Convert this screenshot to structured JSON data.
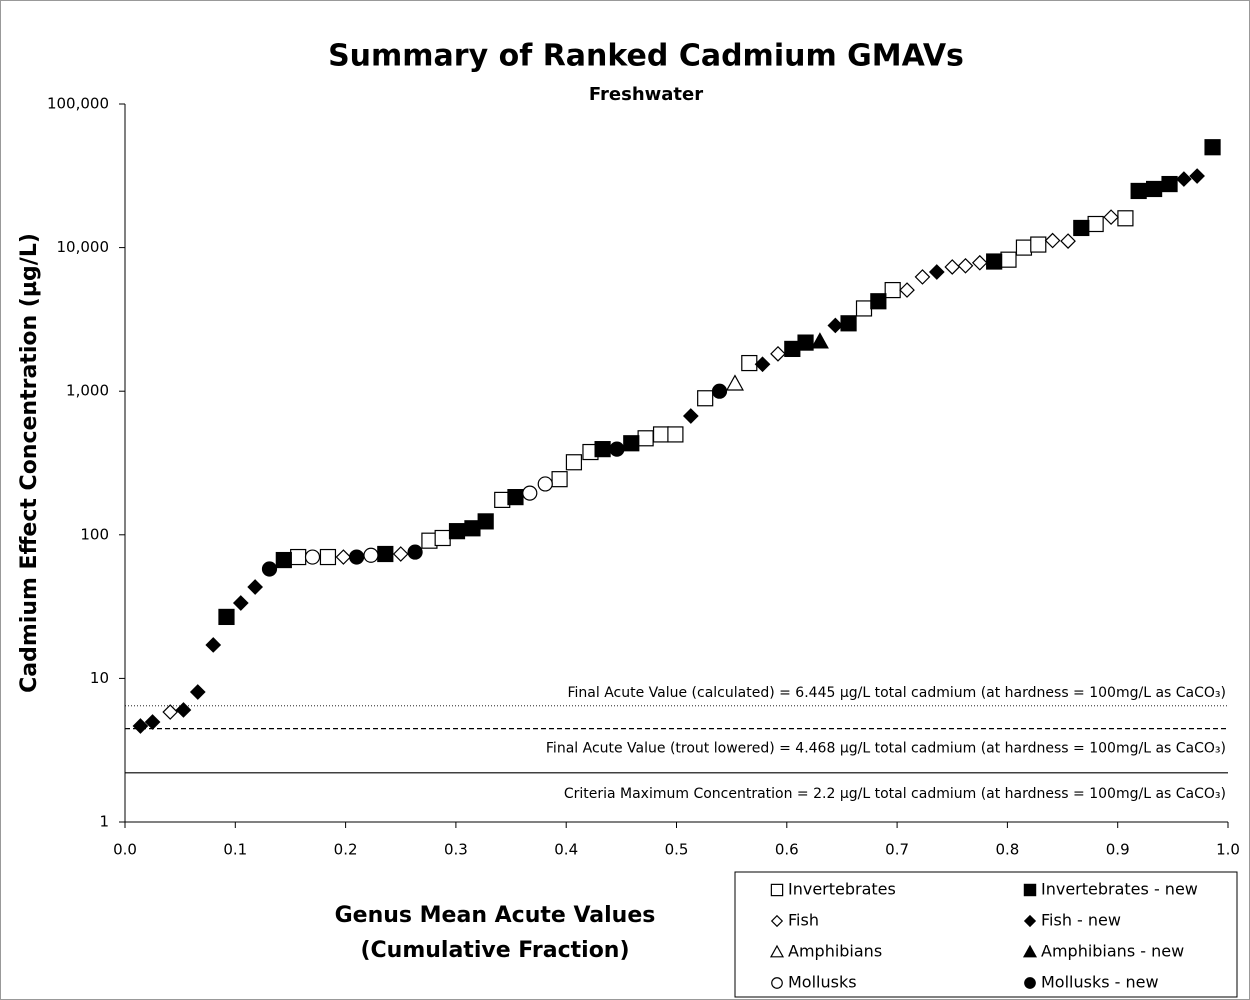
{
  "chart_data": {
    "type": "scatter",
    "title": "Summary of Ranked Cadmium GMAVs",
    "subtitle": "Freshwater",
    "x_label": "Genus Mean Acute Values\n(Cumulative Fraction)",
    "y_label": "Cadmium Effect Concentration  (µg/L)",
    "xlim": [
      0,
      1
    ],
    "xticks": [
      {
        "value": 0,
        "label": "0.0"
      },
      0.1,
      0.2,
      0.3,
      0.4,
      0.5,
      0.6,
      0.7,
      0.8,
      0.9,
      {
        "value": 1,
        "label": "1.0"
      }
    ],
    "ylim": [
      1,
      100000
    ],
    "yscale": "log",
    "yticks": [
      1,
      10,
      100,
      {
        "value": 1000,
        "label": "1,000"
      },
      {
        "value": 10000,
        "label": "10,000"
      },
      {
        "value": 100000,
        "label": "100,000"
      }
    ],
    "grid": false,
    "legend": "bottom-right",
    "series": [
      {
        "name": "Invertebrates",
        "color": "#000000",
        "marker": "square",
        "filled": false,
        "x": [
          0.157,
          0.184,
          0.276,
          0.288,
          0.342,
          0.394,
          0.407,
          0.422,
          0.472,
          0.486,
          0.499,
          0.526,
          0.566,
          0.67,
          0.696,
          0.801,
          0.815,
          0.828,
          0.88,
          0.907
        ],
        "values": [
          70,
          70,
          91,
          95,
          175,
          244,
          320,
          377,
          470,
          500,
          500,
          893,
          1570,
          3770,
          5060,
          8240,
          10000,
          10500,
          14600,
          16000
        ]
      },
      {
        "name": "Invertebrates - new",
        "color": "#000000",
        "marker": "square",
        "filled": true,
        "x": [
          0.092,
          0.144,
          0.236,
          0.301,
          0.315,
          0.327,
          0.354,
          0.433,
          0.459,
          0.605,
          0.617,
          0.656,
          0.683,
          0.788,
          0.867,
          0.919,
          0.933,
          0.947,
          0.986
        ],
        "values": [
          26.8,
          66.7,
          73.5,
          106,
          111,
          124,
          183,
          395,
          434,
          1970,
          2180,
          2970,
          4230,
          8000,
          13700,
          24800,
          25600,
          27700,
          50000
        ]
      },
      {
        "name": "Fish",
        "color": "#000000",
        "marker": "diamond",
        "filled": false,
        "x": [
          0.041,
          0.198,
          0.25,
          0.592,
          0.709,
          0.723,
          0.75,
          0.762,
          0.775,
          0.841,
          0.855,
          0.894
        ],
        "values": [
          5.83,
          70,
          73.5,
          1820,
          5060,
          6250,
          7330,
          7470,
          7840,
          11200,
          11100,
          16300
        ]
      },
      {
        "name": "Fish - new",
        "color": "#000000",
        "marker": "diamond",
        "filled": true,
        "x": [
          0.014,
          0.025,
          0.053,
          0.066,
          0.08,
          0.105,
          0.118,
          0.513,
          0.578,
          0.644,
          0.736,
          0.96,
          0.972
        ],
        "values": [
          4.66,
          4.97,
          6.03,
          8.04,
          17.1,
          33.5,
          43.3,
          672,
          1540,
          2870,
          6760,
          30000,
          31500
        ]
      },
      {
        "name": "Amphibians",
        "color": "#000000",
        "marker": "triangle",
        "filled": false,
        "x": [
          0.553
        ],
        "values": [
          1130
        ]
      },
      {
        "name": "Amphibians - new",
        "color": "#000000",
        "marker": "triangle",
        "filled": true,
        "x": [
          0.63
        ],
        "values": [
          2220
        ]
      },
      {
        "name": "Mollusks",
        "color": "#000000",
        "marker": "circle",
        "filled": false,
        "x": [
          0.17,
          0.223,
          0.367,
          0.381
        ],
        "values": [
          70,
          72,
          195,
          226
        ]
      },
      {
        "name": "Mollusks - new",
        "color": "#000000",
        "marker": "circle",
        "filled": true,
        "x": [
          0.131,
          0.21,
          0.263,
          0.446,
          0.539
        ],
        "values": [
          57.8,
          70,
          75.8,
          395,
          1000
        ]
      }
    ],
    "reference_lines": [
      {
        "label": "Final Acute Value (calculated) = 6.445 µg/L total cadmium (at hardness = 100mg/L as CaCO₃)",
        "value": 6.445,
        "style": "dotted"
      },
      {
        "label": "Final Acute Value (trout lowered)  = 4.468 µg/L total cadmium (at hardness = 100mg/L as CaCO₃)",
        "value": 4.468,
        "style": "dashed"
      },
      {
        "label": "Criteria Maximum Concentration = 2.2 µg/L total cadmium (at hardness = 100mg/L as CaCO₃)",
        "value": 2.2,
        "style": "solid"
      }
    ]
  }
}
